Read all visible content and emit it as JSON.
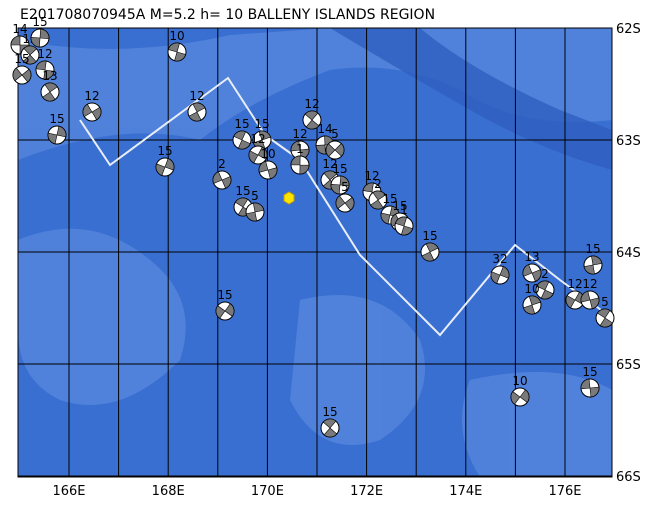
{
  "title": "E201708070945A  M=5.2  h= 10  BALLENY ISLANDS REGION",
  "longitude_labels": [
    "166E",
    "168E",
    "170E",
    "172E",
    "174E",
    "176E"
  ],
  "latitude_labels": [
    "62S",
    "63S",
    "64S",
    "65S",
    "66S"
  ],
  "events": [
    {
      "label": "14"
    },
    {
      "label": "12"
    },
    {
      "label": "15"
    },
    {
      "label": "15"
    },
    {
      "label": "12"
    },
    {
      "label": "13"
    },
    {
      "label": "15"
    },
    {
      "label": "12"
    },
    {
      "label": "10"
    },
    {
      "label": "12"
    },
    {
      "label": "15"
    },
    {
      "label": "2"
    },
    {
      "label": "15"
    },
    {
      "label": "15"
    },
    {
      "label": "12"
    },
    {
      "label": "10"
    },
    {
      "label": "15"
    },
    {
      "label": "5"
    },
    {
      "label": "15"
    },
    {
      "label": "12"
    },
    {
      "label": "12"
    },
    {
      "label": "14"
    },
    {
      "label": "5"
    },
    {
      "label": "1"
    },
    {
      "label": "12"
    },
    {
      "label": "15"
    },
    {
      "label": "5"
    },
    {
      "label": "12"
    },
    {
      "label": "2"
    },
    {
      "label": "15"
    },
    {
      "label": "15"
    },
    {
      "label": "1"
    },
    {
      "label": "15"
    },
    {
      "label": "32"
    },
    {
      "label": "13"
    },
    {
      "label": "2"
    },
    {
      "label": "10"
    },
    {
      "label": "12"
    },
    {
      "label": "12"
    },
    {
      "label": "5"
    },
    {
      "label": "15"
    },
    {
      "label": "10"
    },
    {
      "label": "15"
    },
    {
      "label": "15"
    }
  ]
}
